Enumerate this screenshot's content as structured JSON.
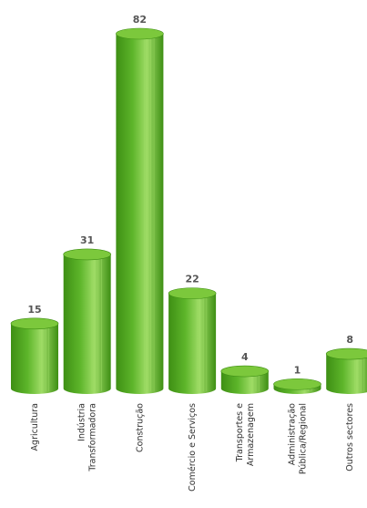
{
  "chart_data": {
    "type": "bar",
    "style": "3d-cylinder",
    "categories": [
      [
        "Agricultura"
      ],
      [
        "Indústria",
        "Transformadora"
      ],
      [
        "Construção"
      ],
      [
        "Comércio e Serviços"
      ],
      [
        "Transportes e",
        "Armazenagem"
      ],
      [
        "Administração",
        "Pública/Regional"
      ],
      [
        "Outros sectores"
      ]
    ],
    "values": [
      15,
      31,
      82,
      22,
      4,
      1,
      8
    ],
    "ylim": [
      0,
      82
    ],
    "grid": false,
    "legend": "none",
    "colors": {
      "bar": "#5db52a",
      "bar_dark": "#3e8f14",
      "bar_light": "#9fdc66",
      "top": "#7cc83c"
    }
  }
}
